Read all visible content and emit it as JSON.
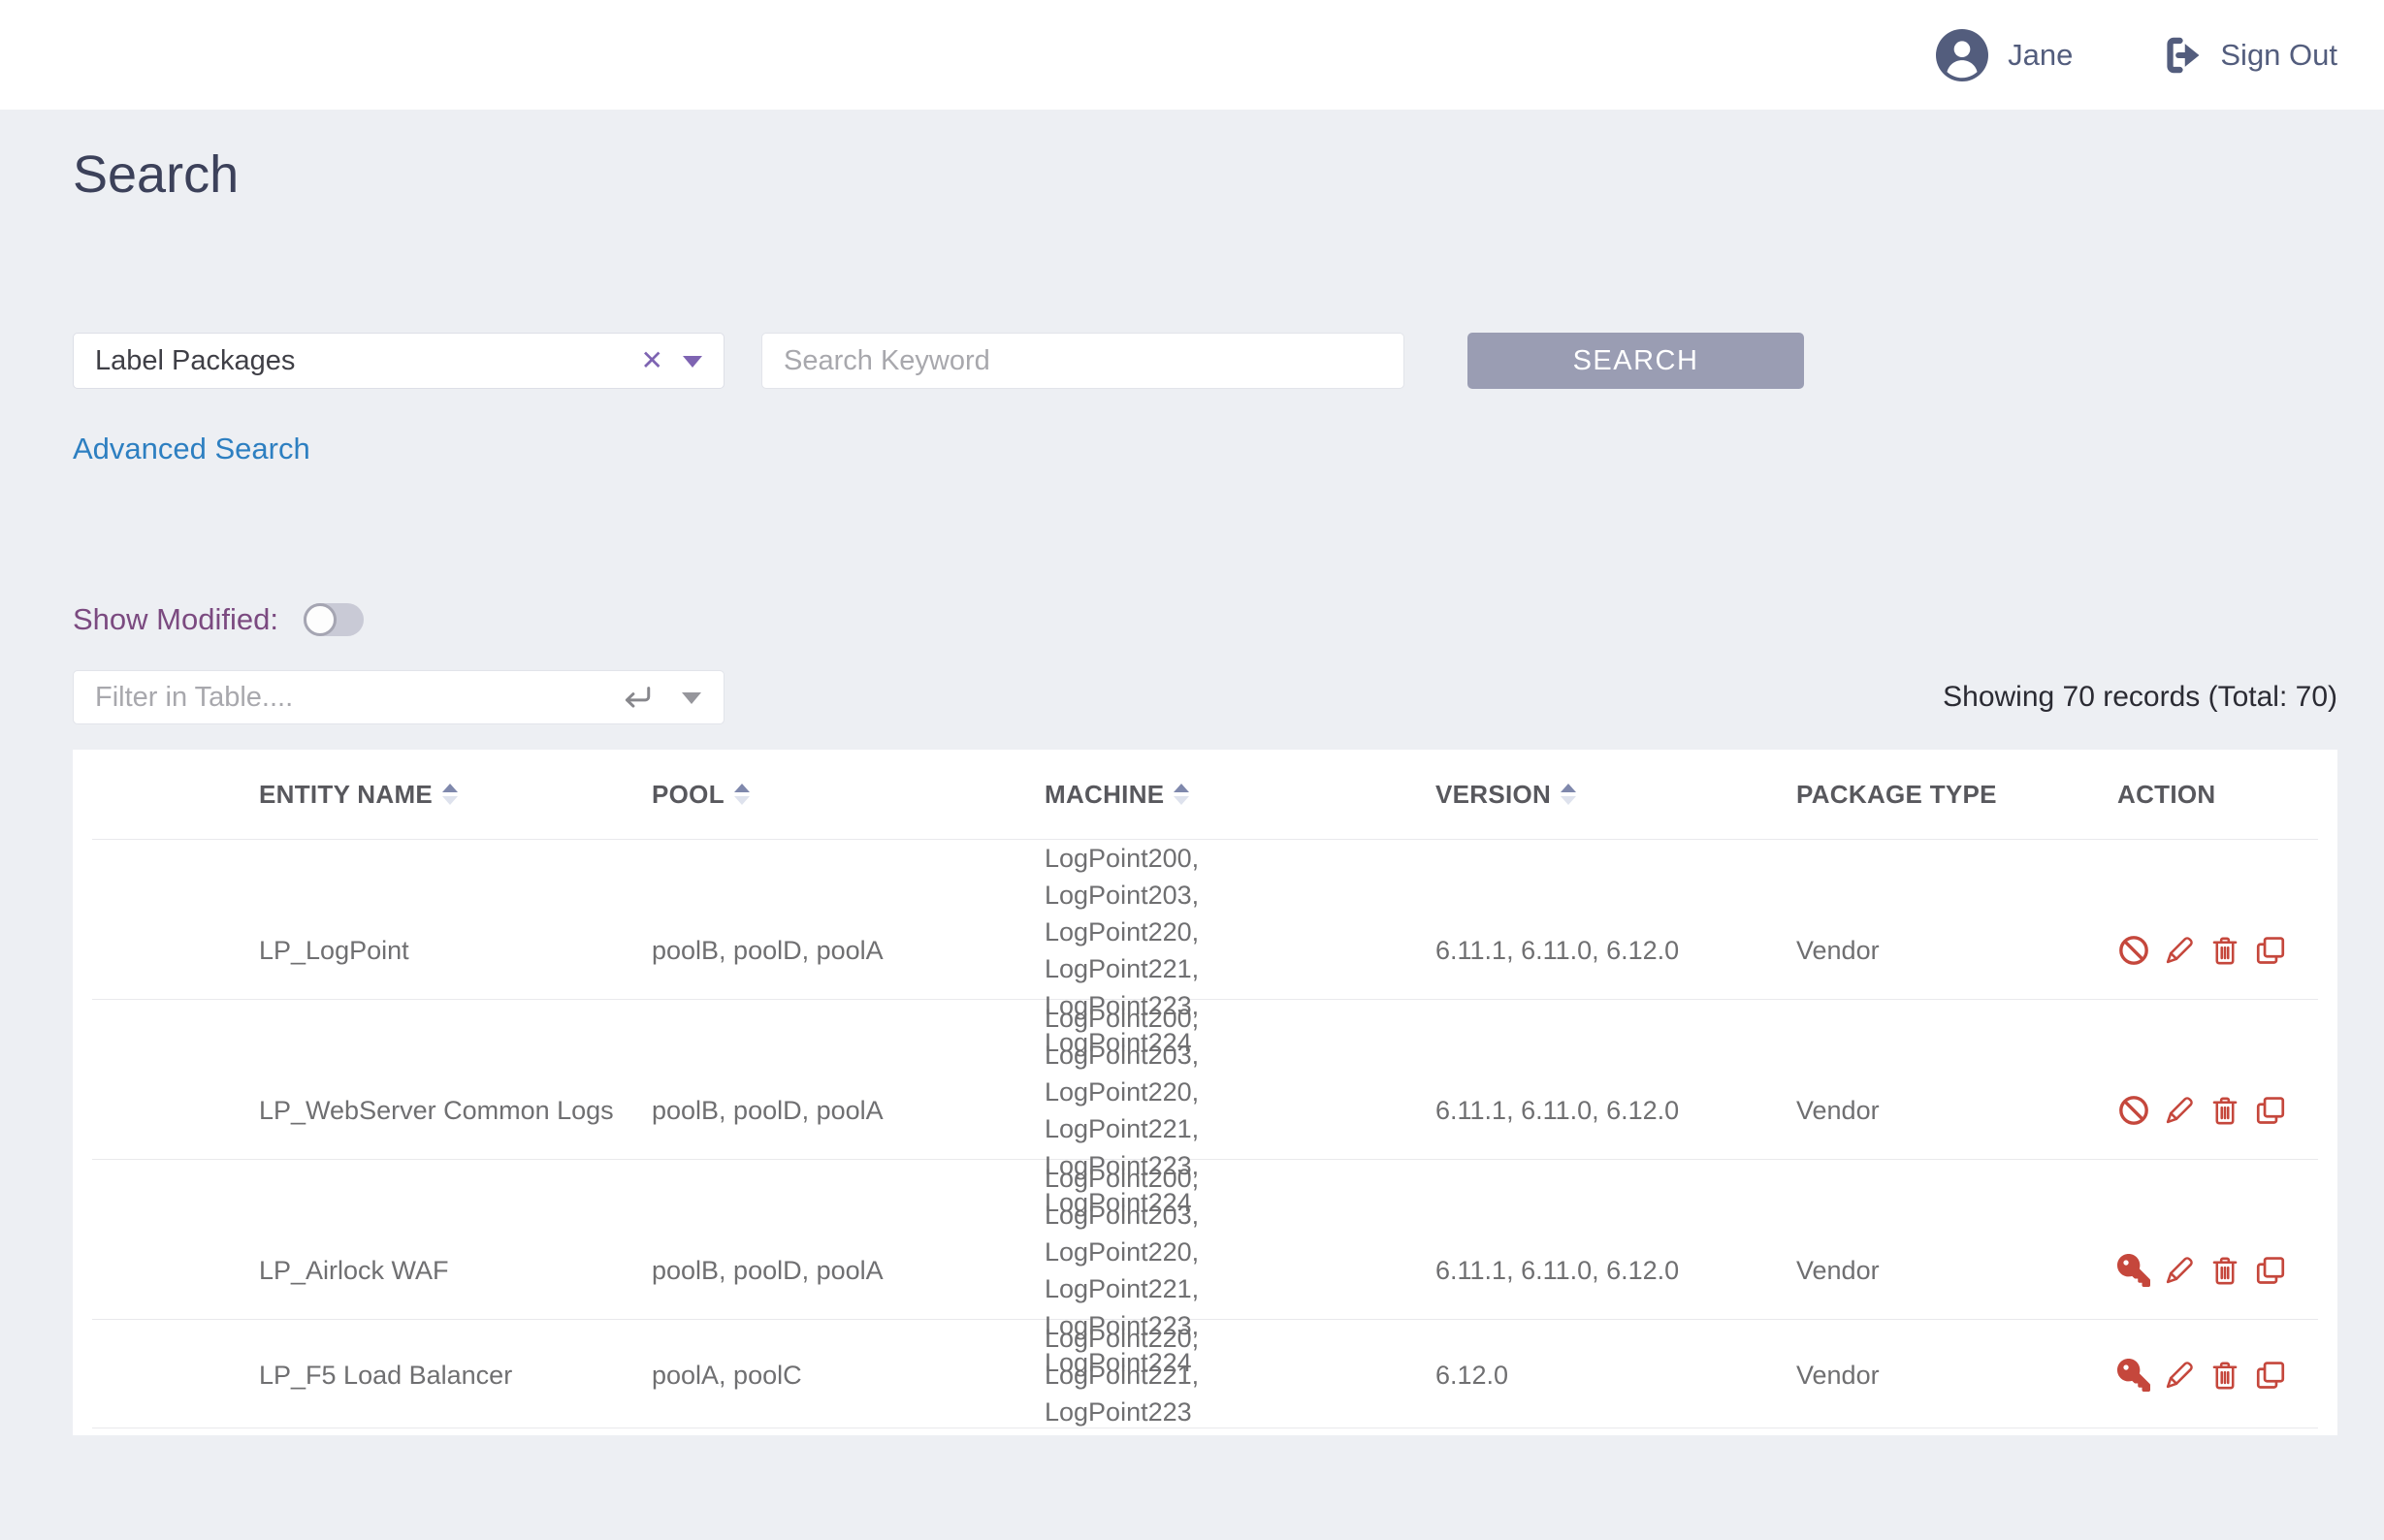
{
  "topbar": {
    "user_name": "Jane",
    "sign_out_label": "Sign Out"
  },
  "page": {
    "title": "Search"
  },
  "search": {
    "category_value": "Label Packages",
    "keyword_placeholder": "Search Keyword",
    "search_button_label": "SEARCH",
    "advanced_search_label": "Advanced Search"
  },
  "filters": {
    "show_modified_label": "Show Modified:",
    "show_modified_on": false,
    "filter_placeholder": "Filter in Table....",
    "records_summary": "Showing 70 records (Total: 70)"
  },
  "table": {
    "columns": [
      {
        "label": "ENTITY NAME",
        "sortable": true
      },
      {
        "label": "POOL",
        "sortable": true
      },
      {
        "label": "MACHINE",
        "sortable": true
      },
      {
        "label": "VERSION",
        "sortable": true
      },
      {
        "label": "PACKAGE TYPE",
        "sortable": false
      },
      {
        "label": "ACTION",
        "sortable": false
      }
    ],
    "rows": [
      {
        "entity_name": "LP_LogPoint",
        "pool": "poolB, poolD, poolA",
        "machine": "LogPoint200, LogPoint203, LogPoint220, LogPoint221, LogPoint223, LogPoint224",
        "version": "6.11.1, 6.11.0, 6.12.0",
        "package_type": "Vendor",
        "actions": [
          "ban",
          "edit",
          "delete",
          "copy"
        ]
      },
      {
        "entity_name": "LP_WebServer Common Logs",
        "pool": "poolB, poolD, poolA",
        "machine": "LogPoint200, LogPoint203, LogPoint220, LogPoint221, LogPoint223, LogPoint224",
        "version": "6.11.1, 6.11.0, 6.12.0",
        "package_type": "Vendor",
        "actions": [
          "ban",
          "edit",
          "delete",
          "copy"
        ]
      },
      {
        "entity_name": "LP_Airlock WAF",
        "pool": "poolB, poolD, poolA",
        "machine": "LogPoint200, LogPoint203, LogPoint220, LogPoint221, LogPoint223, LogPoint224",
        "version": "6.11.1, 6.11.0, 6.12.0",
        "package_type": "Vendor",
        "actions": [
          "key",
          "edit",
          "delete",
          "copy"
        ]
      },
      {
        "entity_name": "LP_F5 Load Balancer",
        "pool": "poolA, poolC",
        "machine": "LogPoint220, LogPoint221, LogPoint223",
        "version": "6.12.0",
        "package_type": "Vendor",
        "actions": [
          "key",
          "edit",
          "delete",
          "copy"
        ]
      }
    ]
  },
  "colors": {
    "page_bg": "#edeff3",
    "topbar_text": "#535d7d",
    "accent_purple": "#7e64b2",
    "link_blue": "#2d7fc1",
    "label_purple": "#7b4a80",
    "button_bg": "#9a9db3",
    "action_red": "#c5473c"
  }
}
